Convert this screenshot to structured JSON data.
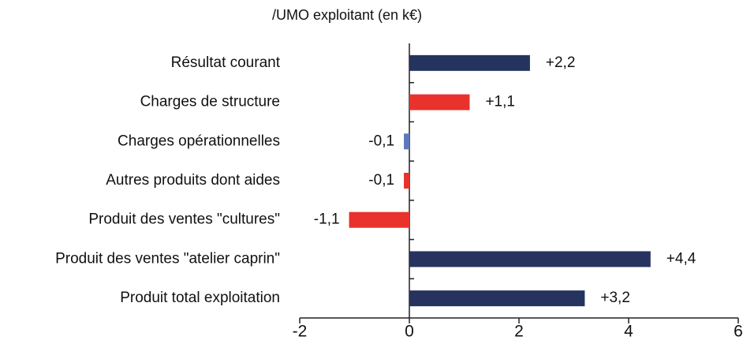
{
  "chart_data": {
    "type": "barh",
    "title": "/UMO exploitant (en k€)",
    "categories": [
      "Résultat courant",
      "Charges de structure",
      "Charges opérationnelles",
      "Autres produits dont aides",
      "Produit des ventes \"cultures\"",
      "Produit des ventes \"atelier caprin\"",
      "Produit total exploitation"
    ],
    "values": [
      2.2,
      1.1,
      -0.1,
      -0.1,
      -1.1,
      4.4,
      3.2
    ],
    "value_labels": [
      "+2,2",
      "+1,1",
      "-0,1",
      "-0,1",
      "-1,1",
      "+4,4",
      "+3,2"
    ],
    "colors": [
      "#26335f",
      "#e8322b",
      "#5b78b8",
      "#e8322b",
      "#e8322b",
      "#26335f",
      "#26335f"
    ],
    "xlim": [
      -2,
      6
    ],
    "xticks": [
      -2,
      0,
      2,
      4,
      6
    ]
  }
}
